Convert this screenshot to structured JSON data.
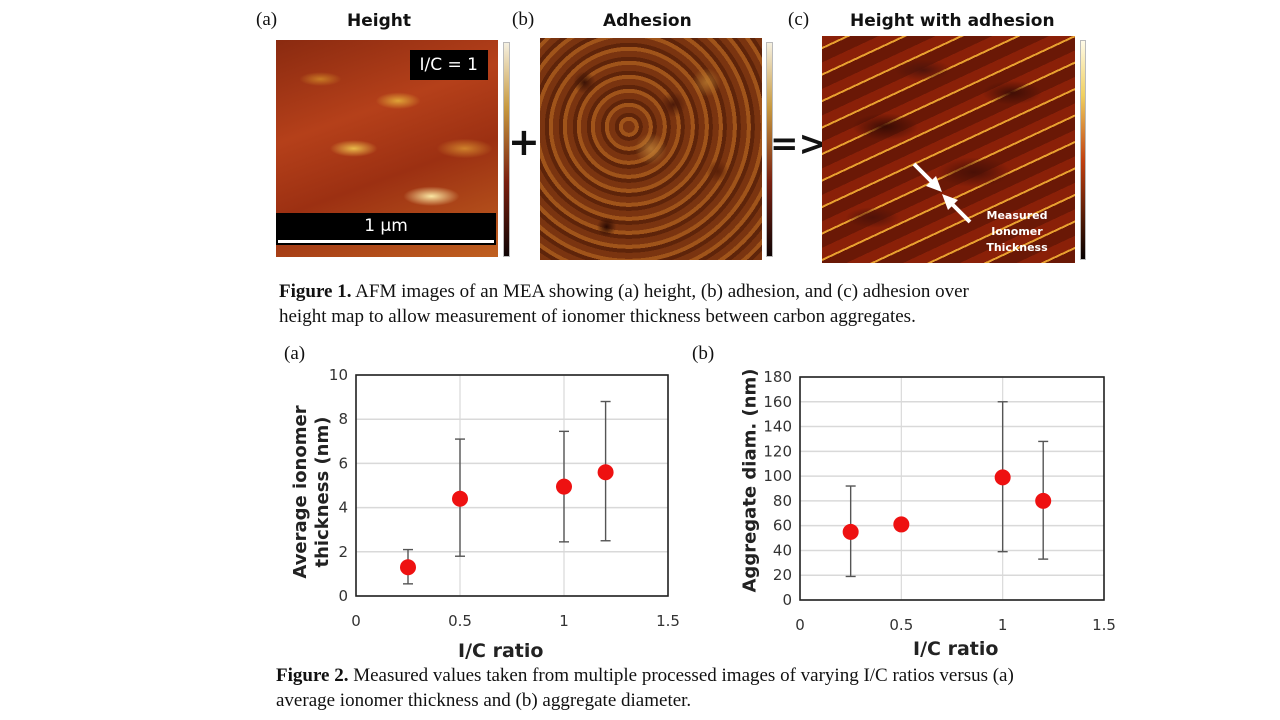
{
  "figure1": {
    "panels": [
      {
        "letter": "(a)",
        "title": "Height",
        "badge": "I/C = 1",
        "scalebar": "1 µm"
      },
      {
        "letter": "(b)",
        "title": "Adhesion"
      },
      {
        "letter": "(c)",
        "title": "Height with adhesion",
        "annotation": [
          "Measured",
          "Ionomer",
          "Thickness"
        ]
      }
    ],
    "operators": {
      "plus": "+",
      "implies": "=>"
    },
    "caption_bold": "Figure 1.",
    "caption_line1": " AFM images of an MEA showing (a) height, (b) adhesion, and (c) adhesion over",
    "caption_line2": "height map to allow measurement of ionomer thickness between carbon aggregates."
  },
  "figure2": {
    "panel_a_letter": "(a)",
    "panel_b_letter": "(b)",
    "caption_bold": "Figure 2.",
    "caption_line1": " Measured values taken from multiple processed images of varying I/C ratios versus (a)",
    "caption_line2": "average ionomer thickness and (b) aggregate diameter."
  },
  "colors": {
    "marker": "#ee1111",
    "errorbar": "#555555",
    "grid": "#d9d9d9",
    "axis": "#222222"
  },
  "chart_data": [
    {
      "type": "scatter",
      "title": "",
      "xlabel": "I/C ratio",
      "ylabel": "Average ionomer thickness (nm)",
      "xlim": [
        0,
        1.5
      ],
      "ylim": [
        0,
        10
      ],
      "xticks": [
        0,
        0.5,
        1,
        1.5
      ],
      "yticks": [
        0,
        2,
        4,
        6,
        8,
        10
      ],
      "grid": true,
      "x": [
        0.25,
        0.5,
        1.0,
        1.2
      ],
      "y": [
        1.3,
        4.4,
        4.95,
        5.6
      ],
      "y_err_low": [
        0.55,
        1.8,
        2.45,
        2.5
      ],
      "y_err_high": [
        2.1,
        7.1,
        7.45,
        8.8
      ]
    },
    {
      "type": "scatter",
      "title": "",
      "xlabel": "I/C ratio",
      "ylabel": "Aggregate diam. (nm)",
      "xlim": [
        0,
        1.5
      ],
      "ylim": [
        0,
        180
      ],
      "xticks": [
        0,
        0.5,
        1,
        1.5
      ],
      "yticks": [
        0,
        20,
        40,
        60,
        80,
        100,
        120,
        140,
        160,
        180
      ],
      "grid": true,
      "x": [
        0.25,
        0.5,
        1.0,
        1.2
      ],
      "y": [
        55,
        61,
        99,
        80
      ],
      "y_err_low": [
        19,
        59,
        39,
        33
      ],
      "y_err_high": [
        92,
        65,
        160,
        128
      ]
    }
  ]
}
